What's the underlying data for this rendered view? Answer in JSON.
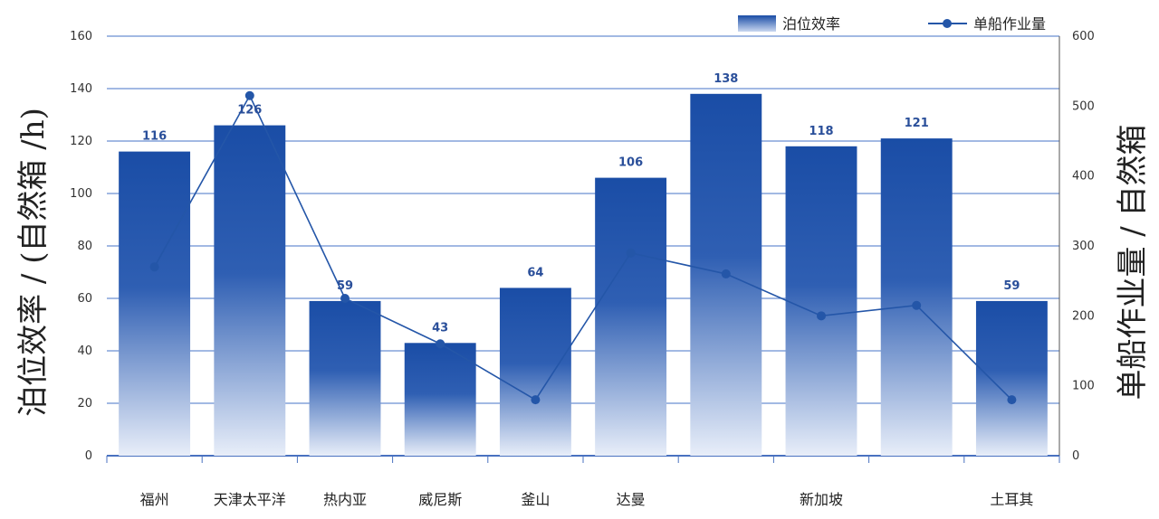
{
  "chart_data": {
    "type": "bar",
    "categories": [
      "福州",
      "天津太平洋",
      "热内亚",
      "威尼斯",
      "釜山",
      "达曼",
      "",
      "新加坡",
      "",
      "土耳其"
    ],
    "series": [
      {
        "name": "泊位效率",
        "type": "bar",
        "axis": "left",
        "values": [
          116,
          126,
          59,
          43,
          64,
          106,
          138,
          118,
          121,
          59
        ]
      },
      {
        "name": "单船作业量",
        "type": "line",
        "axis": "right",
        "values": [
          270,
          515,
          225,
          160,
          80,
          290,
          260,
          200,
          215,
          80
        ]
      }
    ],
    "ylabel": "泊位效率 / (自然箱 /h)",
    "y2label": "单船作业量 / 自然箱",
    "ylim": [
      0,
      160
    ],
    "y2lim": [
      0,
      600
    ],
    "yticks": [
      0,
      20,
      40,
      60,
      80,
      100,
      120,
      140,
      160
    ],
    "y2ticks": [
      "0",
      "100",
      "200",
      "300",
      "400",
      "500",
      "600"
    ],
    "grid": true,
    "legend_position": "top-right",
    "colors": {
      "bar_top": "#1a4da6",
      "bar_bottom": "#e6edf8",
      "line": "#2456a8",
      "grid": "#6a8fd2"
    }
  }
}
